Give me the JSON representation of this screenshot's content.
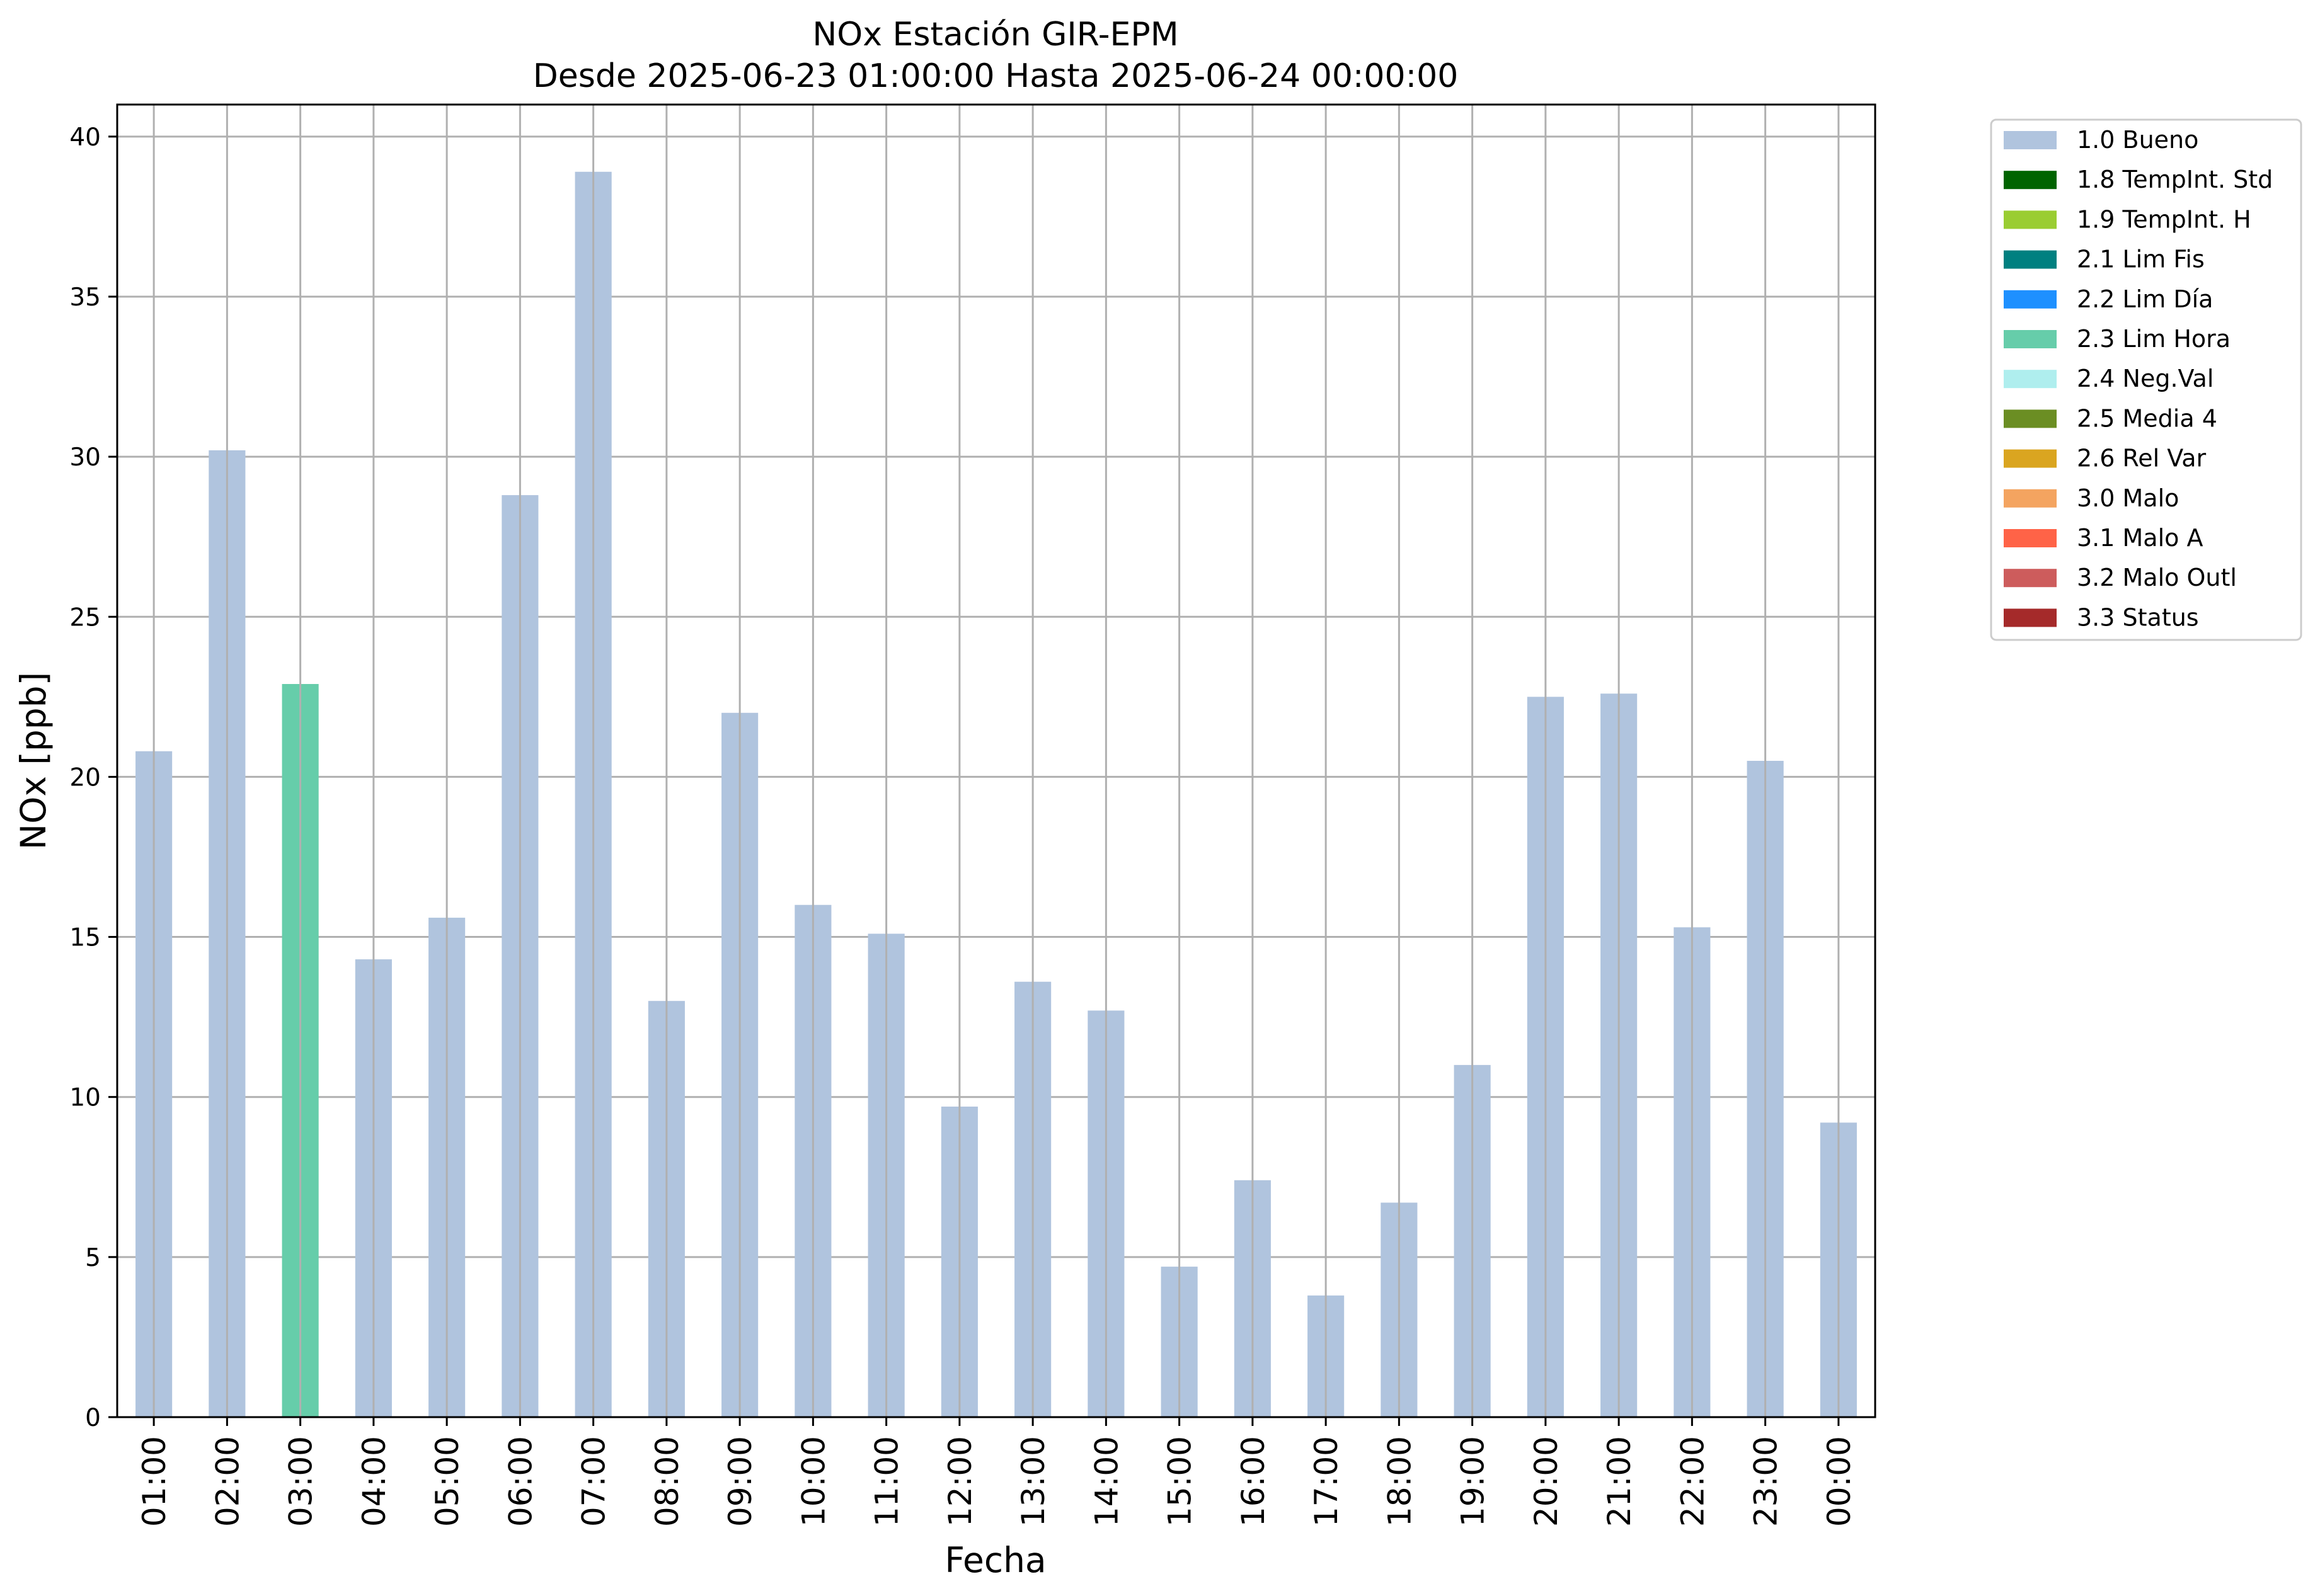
{
  "chart_data": {
    "type": "bar",
    "title": "NOx Estación GIR-EPM",
    "subtitle": "Desde 2025-06-23 01:00:00 Hasta 2025-06-24 00:00:00",
    "xlabel": "Fecha",
    "ylabel": "NOx [ppb]",
    "ylim": [
      0,
      41
    ],
    "yticks": [
      0,
      5,
      10,
      15,
      20,
      25,
      30,
      35,
      40
    ],
    "grid": true,
    "legend_position": "outside-top-right",
    "categories": [
      "01:00",
      "02:00",
      "03:00",
      "04:00",
      "05:00",
      "06:00",
      "07:00",
      "08:00",
      "09:00",
      "10:00",
      "11:00",
      "12:00",
      "13:00",
      "14:00",
      "15:00",
      "16:00",
      "17:00",
      "18:00",
      "19:00",
      "20:00",
      "21:00",
      "22:00",
      "23:00",
      "00:00"
    ],
    "values": [
      20.8,
      30.2,
      22.9,
      14.3,
      15.6,
      28.8,
      38.9,
      13.0,
      22.0,
      16.0,
      15.1,
      9.7,
      13.6,
      12.7,
      4.7,
      7.4,
      3.8,
      6.7,
      11.0,
      22.5,
      22.6,
      15.3,
      20.5,
      9.2
    ],
    "flags": [
      "1.0 Bueno",
      "1.0 Bueno",
      "2.3 Lim Hora",
      "1.0 Bueno",
      "1.0 Bueno",
      "1.0 Bueno",
      "1.0 Bueno",
      "1.0 Bueno",
      "1.0 Bueno",
      "1.0 Bueno",
      "1.0 Bueno",
      "1.0 Bueno",
      "1.0 Bueno",
      "1.0 Bueno",
      "1.0 Bueno",
      "1.0 Bueno",
      "1.0 Bueno",
      "1.0 Bueno",
      "1.0 Bueno",
      "1.0 Bueno",
      "1.0 Bueno",
      "1.0 Bueno",
      "1.0 Bueno",
      "1.0 Bueno"
    ],
    "legend": [
      {
        "label": "1.0 Bueno",
        "color": "#b0c4de"
      },
      {
        "label": "1.8 TempInt. Std",
        "color": "#006400"
      },
      {
        "label": "1.9 TempInt. H",
        "color": "#9acd32"
      },
      {
        "label": "2.1 Lim Fis",
        "color": "#008080"
      },
      {
        "label": "2.2 Lim Día",
        "color": "#1e90ff"
      },
      {
        "label": "2.3 Lim Hora",
        "color": "#66cdaa"
      },
      {
        "label": "2.4 Neg.Val",
        "color": "#afeeee"
      },
      {
        "label": "2.5 Media 4",
        "color": "#6b8e23"
      },
      {
        "label": "2.6 Rel Var",
        "color": "#daa520"
      },
      {
        "label": "3.0 Malo",
        "color": "#f4a460"
      },
      {
        "label": "3.1 Malo A",
        "color": "#ff6347"
      },
      {
        "label": "3.2 Malo Outl",
        "color": "#cd5c5c"
      },
      {
        "label": "3.3 Status",
        "color": "#a52a2a"
      }
    ]
  }
}
